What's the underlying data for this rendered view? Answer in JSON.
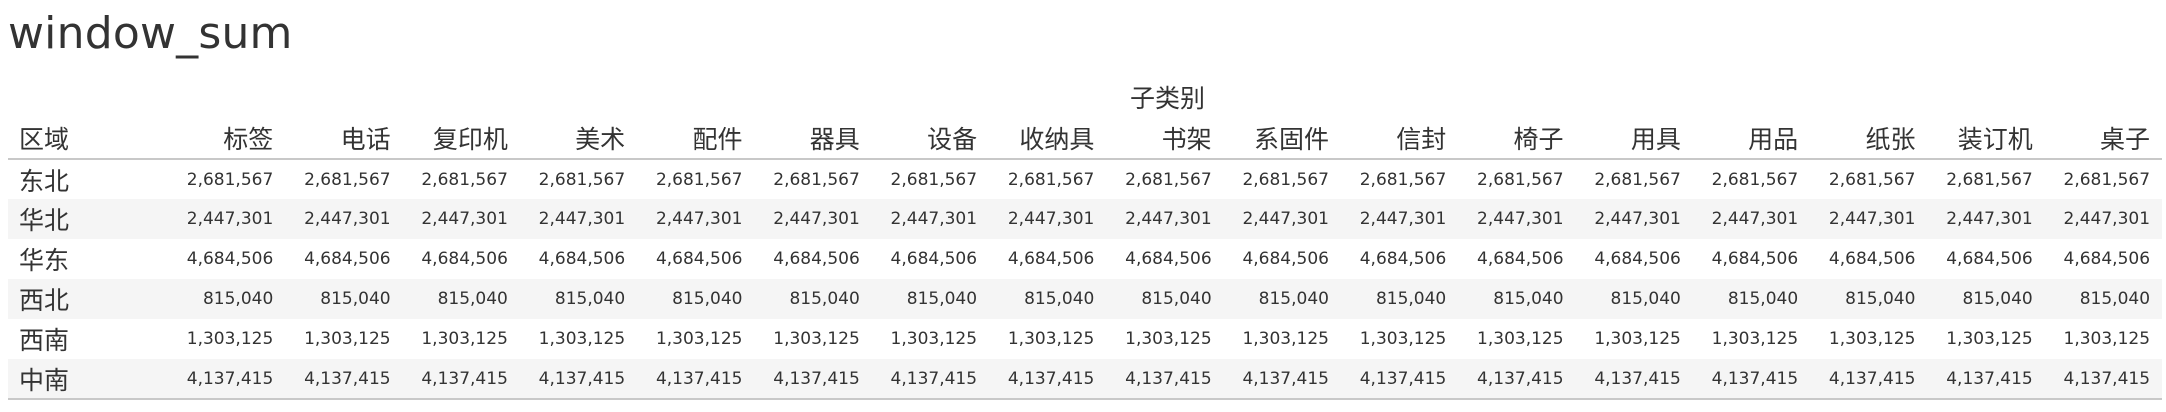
{
  "title": "window_sum",
  "column_dimension_label": "子类别",
  "row_dimension_label": "区域",
  "columns": [
    "标签",
    "电话",
    "复印机",
    "美术",
    "配件",
    "器具",
    "设备",
    "收纳具",
    "书架",
    "系固件",
    "信封",
    "椅子",
    "用具",
    "用品",
    "纸张",
    "装订机",
    "桌子"
  ],
  "rows": [
    {
      "region": "东北",
      "value": "2,681,567"
    },
    {
      "region": "华北",
      "value": "2,447,301"
    },
    {
      "region": "华东",
      "value": "4,684,506"
    },
    {
      "region": "西北",
      "value": "815,040"
    },
    {
      "region": "西南",
      "value": "1,303,125"
    },
    {
      "region": "中南",
      "value": "4,137,415"
    }
  ],
  "colors": {
    "text": "#333333",
    "band": "#f5f5f5",
    "rule": "#c8c8c8",
    "background": "#ffffff"
  }
}
